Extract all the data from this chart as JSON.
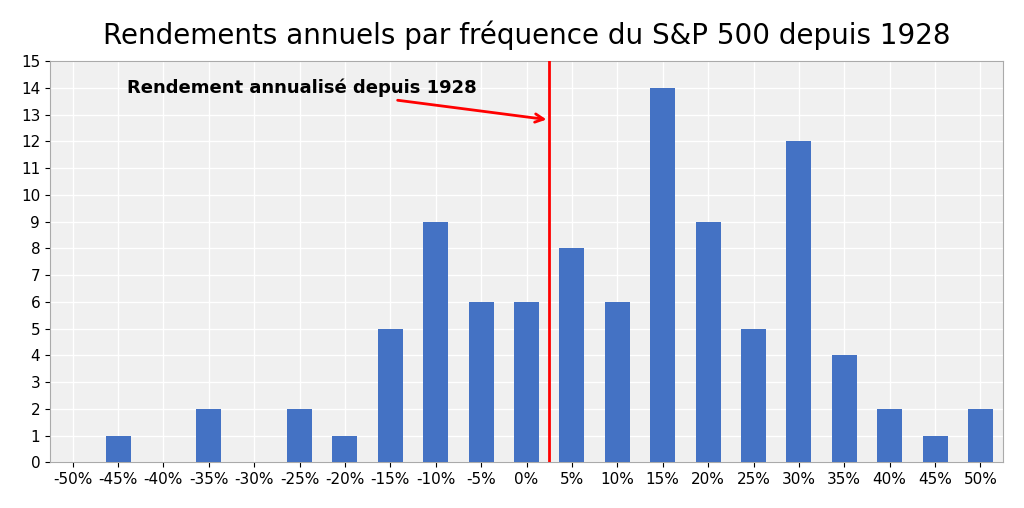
{
  "title": "Rendements annuels par fréquence du S&P 500 depuis 1928",
  "categories": [
    "-50%",
    "-45%",
    "-40%",
    "-35%",
    "-30%",
    "-25%",
    "-20%",
    "-15%",
    "-10%",
    "-5%",
    "0%",
    "5%",
    "10%",
    "15%",
    "20%",
    "25%",
    "30%",
    "35%",
    "40%",
    "45%",
    "50%"
  ],
  "values": [
    0,
    1,
    0,
    2,
    0,
    2,
    1,
    5,
    9,
    6,
    6,
    8,
    6,
    14,
    9,
    5,
    12,
    4,
    2,
    1,
    2
  ],
  "bar_color": "#4472C4",
  "vline_color": "red",
  "vline_index": 11,
  "annotation_text": "Rendement annualisé depuis 1928",
  "ylim": [
    0,
    15
  ],
  "yticks": [
    0,
    1,
    2,
    3,
    4,
    5,
    6,
    7,
    8,
    9,
    10,
    11,
    12,
    13,
    14,
    15
  ],
  "title_fontsize": 20,
  "tick_fontsize": 11,
  "background_color": "#ffffff",
  "plot_bg_color": "#f0f0f0",
  "grid_color": "#ffffff",
  "bar_width": 0.55
}
